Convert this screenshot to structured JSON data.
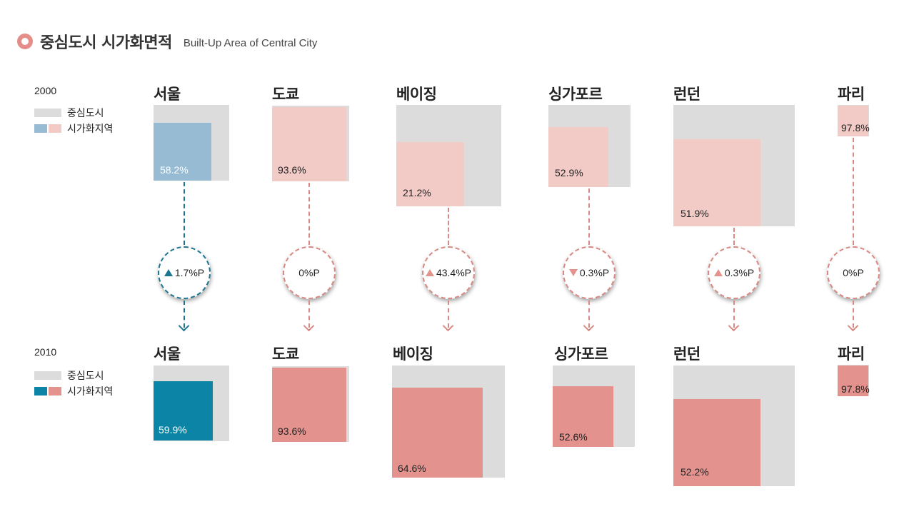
{
  "title": {
    "ko": "중심도시 시가화면적",
    "en": "Built-Up Area of Central City"
  },
  "legend": {
    "central_city": "중심도시",
    "urbanized": "시가화지역",
    "colors": {
      "grey": "#dcdcdc",
      "seoul_2000": "#98bbd4",
      "seoul_2010": "#0b84a5",
      "other_2000": "#f2cbc7",
      "other_2010": "#e3928d",
      "seoul_line": "#1d7590",
      "other_line": "#d98983"
    }
  },
  "years": {
    "y2000": "2000",
    "y2010": "2010"
  },
  "chart_data": {
    "type": "table",
    "series": [
      {
        "name": "2000",
        "values": [
          58.2,
          93.6,
          21.2,
          52.9,
          51.9,
          97.8
        ]
      },
      {
        "name": "2010",
        "values": [
          59.9,
          93.6,
          64.6,
          52.6,
          52.2,
          97.8
        ]
      }
    ],
    "categories": [
      "서울",
      "도쿄",
      "베이징",
      "싱가포르",
      "런던",
      "파리"
    ]
  },
  "cities": [
    {
      "name": "서울",
      "pct_2000": "58.2%",
      "pct_2010": "59.9%",
      "change": "1.7%P",
      "trend": "up"
    },
    {
      "name": "도쿄",
      "pct_2000": "93.6%",
      "pct_2010": "93.6%",
      "change": "0%P",
      "trend": "none"
    },
    {
      "name": "베이징",
      "pct_2000": "21.2%",
      "pct_2010": "64.6%",
      "change": "43.4%P",
      "trend": "up"
    },
    {
      "name": "싱가포르",
      "pct_2000": "52.9%",
      "pct_2010": "52.6%",
      "change": "0.3%P",
      "trend": "down"
    },
    {
      "name": "런던",
      "pct_2000": "51.9%",
      "pct_2010": "52.2%",
      "change": "0.3%P",
      "trend": "up"
    },
    {
      "name": "파리",
      "pct_2000": "97.8%",
      "pct_2010": "97.8%",
      "change": "0%P",
      "trend": "none"
    }
  ]
}
